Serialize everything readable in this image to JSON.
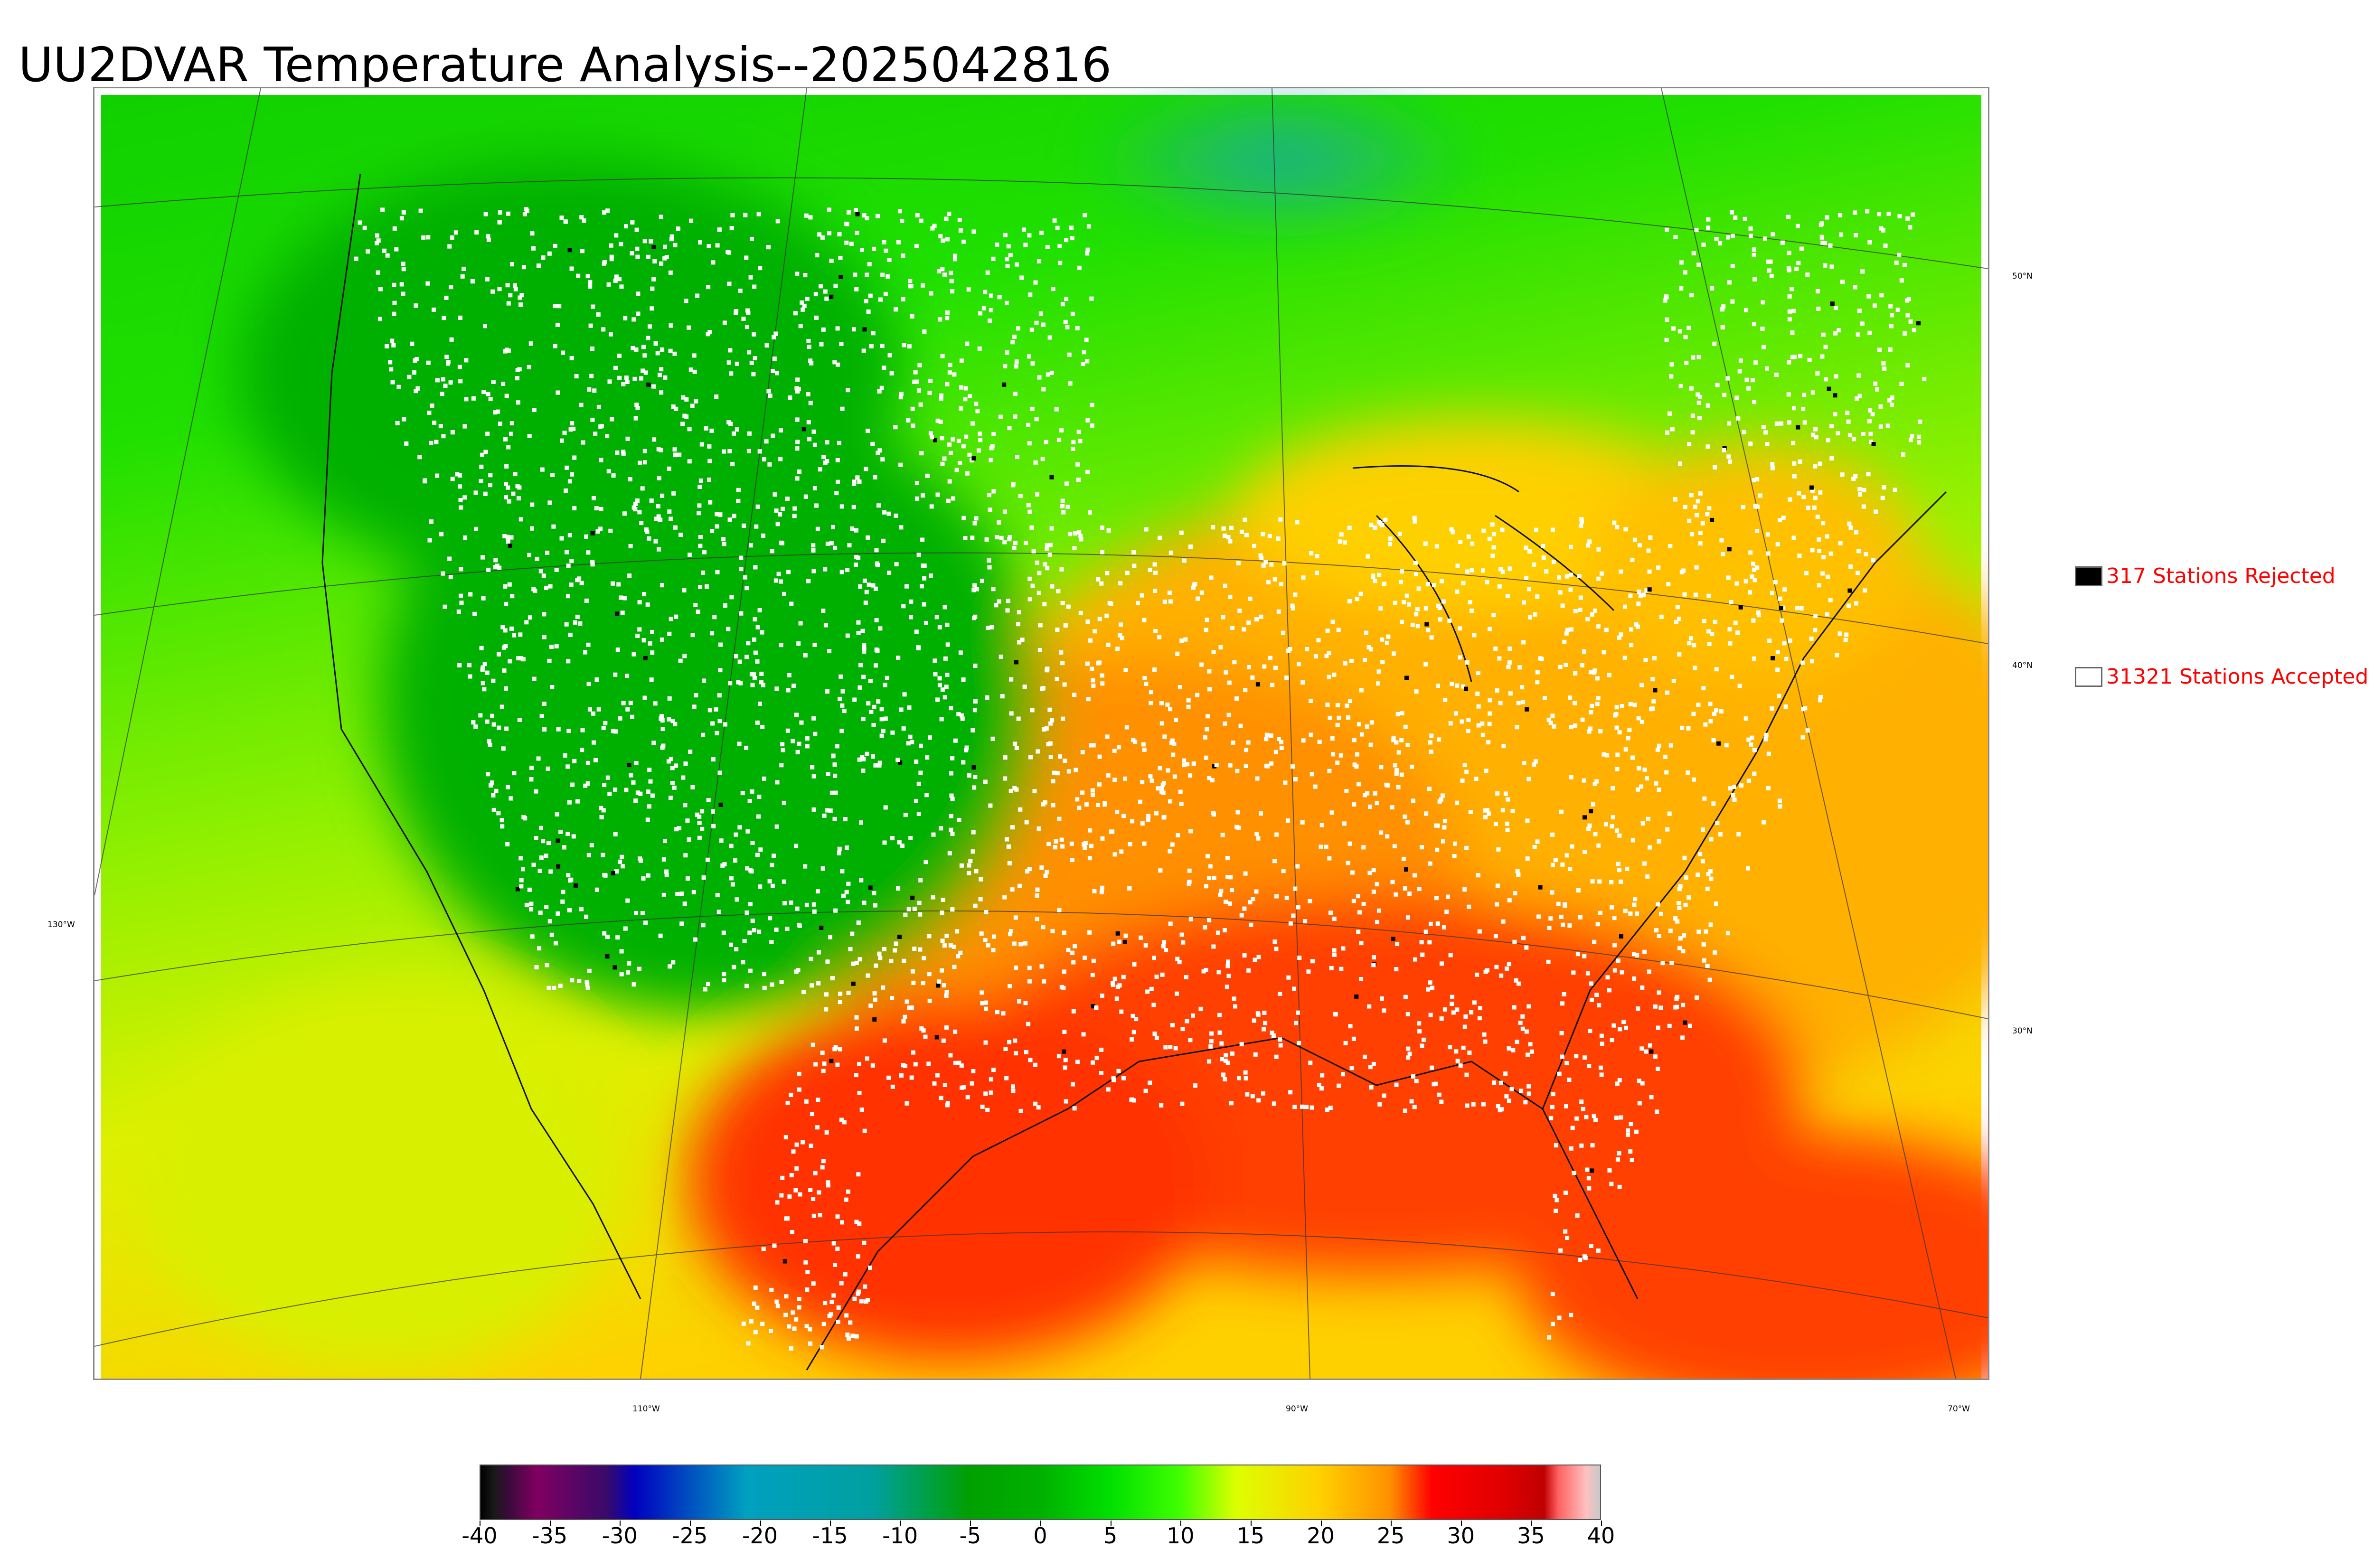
{
  "title": "UU2DVAR Temperature Analysis--2025042816",
  "map": {
    "lat_labels": [
      "50°N",
      "40°N",
      "30°N"
    ],
    "lon_labels": [
      "130°W",
      "110°W",
      "90°W",
      "70°W"
    ]
  },
  "legend": {
    "rejected": {
      "text": "317 Stations Rejected",
      "swatch_color": "#000000"
    },
    "accepted": {
      "text": "31321 Stations Accepted",
      "swatch_color": "#ffffff"
    }
  },
  "colorbar": {
    "min": -40,
    "max": 40,
    "tick_labels": [
      "-40",
      "-35",
      "-30",
      "-25",
      "-20",
      "-15",
      "-10",
      "-5",
      "0",
      "5",
      "10",
      "15",
      "20",
      "25",
      "30",
      "35",
      "40"
    ],
    "colors": [
      {
        "v": -40,
        "c": "#000000"
      },
      {
        "v": -39,
        "c": "#1a1a1a"
      },
      {
        "v": -38,
        "c": "#3a0a3a"
      },
      {
        "v": -36,
        "c": "#800060"
      },
      {
        "v": -31,
        "c": "#3a0a6a"
      },
      {
        "v": -29,
        "c": "#0000c0"
      },
      {
        "v": -21,
        "c": "#00a0c0"
      },
      {
        "v": -12,
        "c": "#00a0a0"
      },
      {
        "v": -5,
        "c": "#00a000"
      },
      {
        "v": 0,
        "c": "#00b000"
      },
      {
        "v": 5,
        "c": "#00e000"
      },
      {
        "v": 10,
        "c": "#40ff00"
      },
      {
        "v": 14,
        "c": "#ddff00"
      },
      {
        "v": 20,
        "c": "#ffd000"
      },
      {
        "v": 25,
        "c": "#ff9000"
      },
      {
        "v": 28,
        "c": "#ff0000"
      },
      {
        "v": 33,
        "c": "#e00000"
      },
      {
        "v": 36,
        "c": "#c00000"
      },
      {
        "v": 37,
        "c": "#ff6060"
      },
      {
        "v": 39,
        "c": "#ffc0c0"
      },
      {
        "v": 40,
        "c": "#c8c8c8"
      }
    ]
  },
  "colors": {
    "cold": "#00b000",
    "cool": "#00e000",
    "mild": "#ddff00",
    "warm": "#ffd000",
    "hot": "#ff9000",
    "very_hot": "#ff0000",
    "teal": "#20a0a0",
    "station_accepted": "#ffffff",
    "station_rejected": "#000000"
  }
}
